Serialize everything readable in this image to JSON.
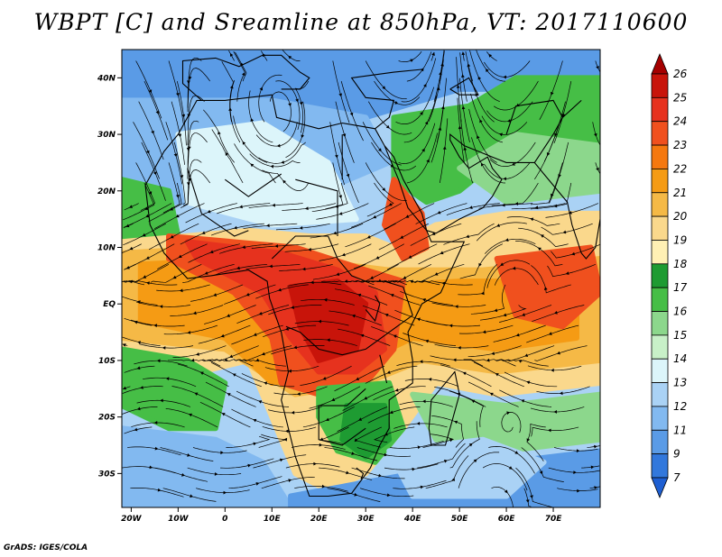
{
  "title": "WBPT [C] and Sreamline at 850hPa, VT: 2017110600",
  "credit": "GrADS: IGES/COLA",
  "map": {
    "lon_range": [
      -22,
      80
    ],
    "lat_range": [
      -36,
      45
    ],
    "lon_ticks": [
      {
        "lon": -20,
        "label": "20W"
      },
      {
        "lon": -10,
        "label": "10W"
      },
      {
        "lon": 0,
        "label": "0"
      },
      {
        "lon": 10,
        "label": "10E"
      },
      {
        "lon": 20,
        "label": "20E"
      },
      {
        "lon": 30,
        "label": "30E"
      },
      {
        "lon": 40,
        "label": "40E"
      },
      {
        "lon": 50,
        "label": "50E"
      },
      {
        "lon": 60,
        "label": "60E"
      },
      {
        "lon": 70,
        "label": "70E"
      }
    ],
    "lat_ticks": [
      {
        "lat": 40,
        "label": "40N"
      },
      {
        "lat": 30,
        "label": "30N"
      },
      {
        "lat": 20,
        "label": "20N"
      },
      {
        "lat": 10,
        "label": "10N"
      },
      {
        "lat": 0,
        "label": "EQ"
      },
      {
        "lat": -10,
        "label": "10S"
      },
      {
        "lat": -20,
        "label": "20S"
      },
      {
        "lat": -30,
        "label": "30S"
      }
    ]
  },
  "colorbar": {
    "levels": [
      "26",
      "25",
      "24",
      "23",
      "22",
      "21",
      "20",
      "19",
      "18",
      "17",
      "16",
      "15",
      "14",
      "13",
      "12",
      "11",
      "9",
      "7"
    ],
    "colors": [
      "#a50000",
      "#c8140a",
      "#e6321e",
      "#f0501e",
      "#f5780f",
      "#f59b14",
      "#f5b946",
      "#fad88c",
      "#fff0b4",
      "#1e9b32",
      "#46be46",
      "#8cd78c",
      "#c8f0c8",
      "#dcf5fa",
      "#aad2f5",
      "#82b9f0",
      "#5a9be6",
      "#3278dc",
      "#1e5fd2"
    ]
  },
  "fields": {
    "background": "#aad2f5",
    "regions": [
      {
        "color": "#5a9be6",
        "pts": [
          [
            -22,
            45
          ],
          [
            80,
            45
          ],
          [
            80,
            38
          ],
          [
            50,
            38
          ],
          [
            30,
            33
          ],
          [
            10,
            36
          ],
          [
            -22,
            36
          ]
        ]
      },
      {
        "color": "#82b9f0",
        "pts": [
          [
            -22,
            36
          ],
          [
            10,
            36
          ],
          [
            30,
            33
          ],
          [
            35,
            25
          ],
          [
            15,
            18
          ],
          [
            -22,
            18
          ]
        ]
      },
      {
        "color": "#dcf5fa",
        "pts": [
          [
            -10,
            30
          ],
          [
            8,
            32
          ],
          [
            22,
            25
          ],
          [
            28,
            15
          ],
          [
            10,
            14
          ],
          [
            -8,
            18
          ]
        ]
      },
      {
        "color": "#46be46",
        "pts": [
          [
            -22,
            22
          ],
          [
            -12,
            20
          ],
          [
            -10,
            12
          ],
          [
            -22,
            11
          ]
        ]
      },
      {
        "color": "#46be46",
        "pts": [
          [
            36,
            33
          ],
          [
            52,
            35
          ],
          [
            62,
            40
          ],
          [
            80,
            40
          ],
          [
            80,
            22
          ],
          [
            62,
            28
          ],
          [
            50,
            20
          ],
          [
            43,
            18
          ],
          [
            36,
            22
          ]
        ]
      },
      {
        "color": "#8cd78c",
        "pts": [
          [
            50,
            24
          ],
          [
            62,
            30
          ],
          [
            80,
            28
          ],
          [
            80,
            20
          ],
          [
            60,
            18
          ]
        ]
      },
      {
        "color": "#fad88c",
        "pts": [
          [
            -22,
            11
          ],
          [
            5,
            13
          ],
          [
            18,
            12
          ],
          [
            30,
            12
          ],
          [
            36,
            10
          ],
          [
            45,
            14
          ],
          [
            60,
            16
          ],
          [
            80,
            16
          ],
          [
            80,
            -14
          ],
          [
            58,
            -16
          ],
          [
            45,
            -14
          ],
          [
            38,
            -22
          ],
          [
            30,
            -30
          ],
          [
            22,
            -33
          ],
          [
            15,
            -30
          ],
          [
            10,
            -20
          ],
          [
            5,
            -10
          ],
          [
            -5,
            -12
          ],
          [
            -22,
            -10
          ]
        ]
      },
      {
        "color": "#f5b946",
        "pts": [
          [
            -22,
            9
          ],
          [
            0,
            10
          ],
          [
            15,
            8
          ],
          [
            35,
            6
          ],
          [
            55,
            6
          ],
          [
            80,
            8
          ],
          [
            80,
            -10
          ],
          [
            58,
            -12
          ],
          [
            42,
            -10
          ],
          [
            30,
            -14
          ],
          [
            15,
            -16
          ],
          [
            0,
            -8
          ],
          [
            -22,
            -6
          ]
        ]
      },
      {
        "color": "#f59b14",
        "pts": [
          [
            -18,
            7
          ],
          [
            5,
            8
          ],
          [
            15,
            5
          ],
          [
            30,
            3
          ],
          [
            50,
            4
          ],
          [
            75,
            4
          ],
          [
            75,
            -6
          ],
          [
            58,
            -8
          ],
          [
            40,
            -6
          ],
          [
            25,
            -12
          ],
          [
            10,
            -14
          ],
          [
            0,
            -6
          ],
          [
            -18,
            -3
          ]
        ]
      },
      {
        "color": "#f0501e",
        "pts": [
          [
            -12,
            12
          ],
          [
            15,
            10
          ],
          [
            30,
            6
          ],
          [
            38,
            4
          ],
          [
            36,
            -8
          ],
          [
            30,
            -14
          ],
          [
            20,
            -16
          ],
          [
            12,
            -14
          ],
          [
            10,
            -6
          ],
          [
            2,
            2
          ],
          [
            -12,
            8
          ]
        ]
      },
      {
        "color": "#e6321e",
        "pts": [
          [
            -8,
            11
          ],
          [
            12,
            9
          ],
          [
            24,
            6
          ],
          [
            32,
            2
          ],
          [
            34,
            -8
          ],
          [
            28,
            -12
          ],
          [
            20,
            -12
          ],
          [
            14,
            -6
          ],
          [
            8,
            2
          ],
          [
            -6,
            8
          ]
        ]
      },
      {
        "color": "#c8140a",
        "pts": [
          [
            14,
            3
          ],
          [
            24,
            4
          ],
          [
            30,
            0
          ],
          [
            28,
            -8
          ],
          [
            20,
            -10
          ],
          [
            16,
            -4
          ]
        ]
      },
      {
        "color": "#f0501e",
        "pts": [
          [
            58,
            8
          ],
          [
            78,
            10
          ],
          [
            80,
            2
          ],
          [
            72,
            -4
          ],
          [
            62,
            -2
          ]
        ]
      },
      {
        "color": "#f0501e",
        "pts": [
          [
            36,
            22
          ],
          [
            42,
            16
          ],
          [
            43,
            10
          ],
          [
            38,
            8
          ],
          [
            34,
            14
          ]
        ]
      },
      {
        "color": "#46be46",
        "pts": [
          [
            20,
            -15
          ],
          [
            35,
            -14
          ],
          [
            38,
            -22
          ],
          [
            32,
            -28
          ],
          [
            24,
            -26
          ],
          [
            20,
            -20
          ]
        ]
      },
      {
        "color": "#1e9b32",
        "pts": [
          [
            26,
            -18
          ],
          [
            34,
            -18
          ],
          [
            35,
            -24
          ],
          [
            30,
            -27
          ],
          [
            25,
            -24
          ]
        ]
      },
      {
        "color": "#46be46",
        "pts": [
          [
            -22,
            -8
          ],
          [
            -8,
            -10
          ],
          [
            0,
            -14
          ],
          [
            -2,
            -22
          ],
          [
            -12,
            -22
          ],
          [
            -22,
            -18
          ]
        ]
      },
      {
        "color": "#8cd78c",
        "pts": [
          [
            40,
            -16
          ],
          [
            60,
            -18
          ],
          [
            80,
            -16
          ],
          [
            80,
            -24
          ],
          [
            60,
            -26
          ],
          [
            45,
            -24
          ]
        ]
      },
      {
        "color": "#82b9f0",
        "pts": [
          [
            -22,
            -22
          ],
          [
            -2,
            -24
          ],
          [
            8,
            -28
          ],
          [
            14,
            -36
          ],
          [
            -22,
            -36
          ]
        ]
      },
      {
        "color": "#5a9be6",
        "pts": [
          [
            14,
            -34
          ],
          [
            40,
            -30
          ],
          [
            80,
            -26
          ],
          [
            80,
            -36
          ],
          [
            14,
            -36
          ]
        ]
      },
      {
        "color": "#aad2f5",
        "pts": [
          [
            35,
            -26
          ],
          [
            55,
            -24
          ],
          [
            68,
            -28
          ],
          [
            60,
            -34
          ],
          [
            40,
            -34
          ]
        ]
      }
    ]
  }
}
